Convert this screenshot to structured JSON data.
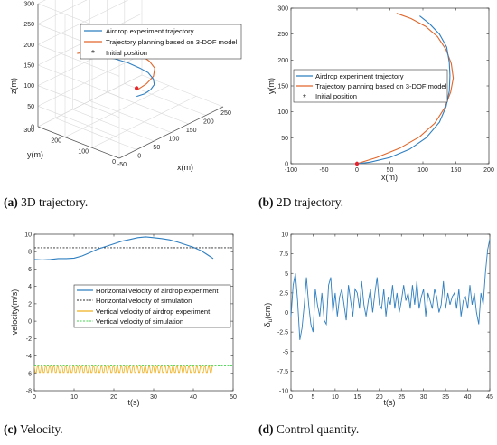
{
  "captions": [
    {
      "letter": "(a)",
      "text": " 3D trajectory."
    },
    {
      "letter": "(b)",
      "text": " 2D trajectory."
    },
    {
      "letter": "(c)",
      "text": " Velocity."
    },
    {
      "letter": "(d)",
      "text": " Control quantity."
    }
  ],
  "colors": {
    "experiment": "#2f7fc1",
    "planned": "#e0662a",
    "initial": "#e8232d",
    "sim_h": "#2b2b2b",
    "exp_v": "#efb120",
    "sim_v": "#44d14c"
  },
  "chart_data": [
    {
      "type": "line",
      "id": "a",
      "title": "",
      "xlabel": "x(m)",
      "ylabel": "y(m)",
      "zlabel": "z(m)",
      "xticks": [
        "-50",
        "0",
        "50",
        "100",
        "150",
        "200",
        "250"
      ],
      "yticks": [
        "0",
        "100",
        "200",
        "300"
      ],
      "zticks": [
        "0",
        "50",
        "100",
        "150",
        "200",
        "250",
        "300"
      ],
      "xlim": [
        -50,
        250
      ],
      "ylim": [
        0,
        300
      ],
      "zlim": [
        0,
        300
      ],
      "grid": true,
      "legend_position": "top",
      "legend": [
        "Airdrop experiment trajectory",
        "Trajectory planning based on 3-DOF model",
        "Initial position"
      ],
      "series": [
        {
          "name": "Airdrop experiment trajectory",
          "x": [
            0,
            30,
            60,
            90,
            115,
            135,
            142,
            140,
            130,
            115,
            100
          ],
          "y": [
            0,
            8,
            25,
            50,
            85,
            130,
            170,
            210,
            245,
            270,
            285
          ],
          "z": [
            130,
            122,
            115,
            108,
            102,
            98,
            96,
            99,
            104,
            110,
            118
          ]
        },
        {
          "name": "Trajectory planning based on 3-DOF model",
          "x": [
            0,
            40,
            80,
            115,
            135,
            145,
            140,
            125,
            105,
            80,
            55
          ],
          "y": [
            0,
            15,
            40,
            80,
            125,
            165,
            200,
            235,
            260,
            278,
            290
          ],
          "z": [
            145,
            140,
            135,
            130,
            127,
            125,
            126,
            128,
            131,
            134,
            137
          ]
        }
      ],
      "points": [
        {
          "name": "Initial position",
          "x": 0,
          "y": 0,
          "z": 150
        }
      ]
    },
    {
      "type": "line",
      "id": "b",
      "title": "",
      "xlabel": "x(m)",
      "ylabel": "y(m)",
      "xlim": [
        -100,
        200
      ],
      "ylim": [
        0,
        300
      ],
      "xticks": [
        -100,
        -50,
        0,
        50,
        100,
        150,
        200
      ],
      "yticks": [
        0,
        50,
        100,
        150,
        200,
        250,
        300
      ],
      "grid": false,
      "legend_position": "center",
      "legend": [
        "Airdrop experiment trajectory",
        "Trajectory planning based on 3-DOF model",
        "Initial position"
      ],
      "series": [
        {
          "name": "Airdrop experiment trajectory",
          "x": [
            0,
            20,
            50,
            80,
            105,
            125,
            135,
            140,
            141,
            140,
            136,
            125,
            110,
            95
          ],
          "y": [
            0,
            3,
            12,
            28,
            50,
            80,
            110,
            140,
            170,
            195,
            225,
            250,
            270,
            285
          ]
        },
        {
          "name": "Trajectory planning based on 3-DOF model",
          "x": [
            0,
            30,
            65,
            95,
            118,
            133,
            142,
            146,
            143,
            135,
            122,
            104,
            82,
            60
          ],
          "y": [
            0,
            12,
            30,
            52,
            78,
            108,
            138,
            165,
            193,
            220,
            245,
            265,
            280,
            290
          ]
        }
      ],
      "points": [
        {
          "name": "Initial position",
          "x": 0,
          "y": 0
        }
      ]
    },
    {
      "type": "line",
      "id": "c",
      "title": "",
      "xlabel": "t(s)",
      "ylabel": "velocity(m/s)",
      "xlim": [
        0,
        50
      ],
      "ylim": [
        -8,
        10
      ],
      "xticks": [
        0,
        10,
        20,
        30,
        40,
        50
      ],
      "yticks": [
        -8,
        -6,
        -4,
        -2,
        0,
        2,
        4,
        6,
        8,
        10
      ],
      "grid": false,
      "legend_position": "center-right",
      "legend": [
        "Horizontal velocity of airdrop experiment",
        "Horizontal velocity of simulation",
        "Vertical velocity of airdrop experiment",
        "Vertical velocity of simulation"
      ],
      "series": [
        {
          "name": "Horizontal velocity of airdrop experiment",
          "x": [
            0,
            2,
            4,
            6,
            8,
            10,
            12,
            14,
            16,
            18,
            20,
            22,
            24,
            26,
            28,
            30,
            32,
            34,
            36,
            38,
            40,
            42,
            43,
            44,
            45
          ],
          "y": [
            7.1,
            7.05,
            7.1,
            7.2,
            7.2,
            7.25,
            7.5,
            7.9,
            8.3,
            8.6,
            8.9,
            9.2,
            9.4,
            9.6,
            9.7,
            9.6,
            9.5,
            9.35,
            9.1,
            8.8,
            8.5,
            8.1,
            7.8,
            7.5,
            7.2
          ]
        },
        {
          "name": "Horizontal velocity of simulation",
          "x": [
            0,
            50
          ],
          "y": [
            8.45,
            8.45
          ]
        },
        {
          "name": "Vertical velocity of airdrop experiment",
          "x": [
            0,
            45
          ],
          "y": [
            -5.5,
            -5.5
          ],
          "oscillation": {
            "min": -5.9,
            "max": -5.2,
            "period_s": 1
          }
        },
        {
          "name": "Vertical velocity of simulation",
          "x": [
            0,
            50
          ],
          "y": [
            -5.15,
            -5.15
          ]
        }
      ]
    },
    {
      "type": "line",
      "id": "d",
      "title": "",
      "xlabel": "t(s)",
      "ylabel": "δu(cm)",
      "ylabel_symbol": "δ",
      "ylabel_sub": "u",
      "ylabel_unit": "(cm)",
      "xlim": [
        0,
        45
      ],
      "ylim": [
        -10,
        10
      ],
      "xticks": [
        0,
        5,
        10,
        15,
        20,
        25,
        30,
        35,
        40,
        45
      ],
      "yticks": [
        "-10",
        "-7.5",
        "-5",
        "-2.5",
        "0",
        "2.5",
        "5",
        "7.5",
        "10"
      ],
      "grid": false,
      "series": [
        {
          "name": "",
          "x": [
            0,
            0.5,
            1,
            1.5,
            2,
            2.5,
            3,
            3.5,
            4,
            4.5,
            5,
            5.5,
            6,
            6.5,
            7,
            7.5,
            8,
            8.5,
            9,
            9.5,
            10,
            10.5,
            11,
            11.5,
            12,
            12.5,
            13,
            13.5,
            14,
            14.5,
            15,
            15.5,
            16,
            16.5,
            17,
            17.5,
            18,
            18.5,
            19,
            19.5,
            20,
            20.5,
            21,
            21.5,
            22,
            22.5,
            23,
            23.5,
            24,
            24.5,
            25,
            25.5,
            26,
            26.5,
            27,
            27.5,
            28,
            28.5,
            29,
            29.5,
            30,
            30.5,
            31,
            31.5,
            32,
            32.5,
            33,
            33.5,
            34,
            34.5,
            35,
            35.5,
            36,
            36.5,
            37,
            37.5,
            38,
            38.5,
            39,
            39.5,
            40,
            40.5,
            41,
            41.5,
            42,
            42.5,
            43,
            43.5,
            44,
            44.5,
            45
          ],
          "y": [
            -0.5,
            3.5,
            5,
            1.5,
            -3.5,
            -2,
            1,
            4.5,
            1,
            -1.5,
            -2.5,
            3,
            1,
            -0.5,
            2.5,
            -1,
            -1.5,
            3.5,
            4.5,
            0,
            2.5,
            -0.5,
            2,
            3,
            1,
            -1,
            3.5,
            1.5,
            -0.5,
            3,
            2.5,
            0.5,
            4,
            1,
            -0.5,
            1.5,
            3,
            0,
            2.5,
            4.5,
            1,
            0.5,
            3,
            -0.5,
            2,
            1,
            3.5,
            0.5,
            2.5,
            0,
            1.5,
            3.5,
            1.5,
            2.5,
            0.5,
            3.5,
            1,
            4,
            0.5,
            2,
            3,
            -0.5,
            2.5,
            1.5,
            0.5,
            3,
            2,
            0,
            1,
            4,
            0.5,
            2.5,
            1,
            2,
            2.5,
            0.5,
            3,
            -0.5,
            1.5,
            2,
            0.5,
            3.5,
            1,
            2.5,
            0,
            -1.5,
            2.5,
            1,
            5,
            8,
            9.4
          ]
        }
      ]
    }
  ]
}
